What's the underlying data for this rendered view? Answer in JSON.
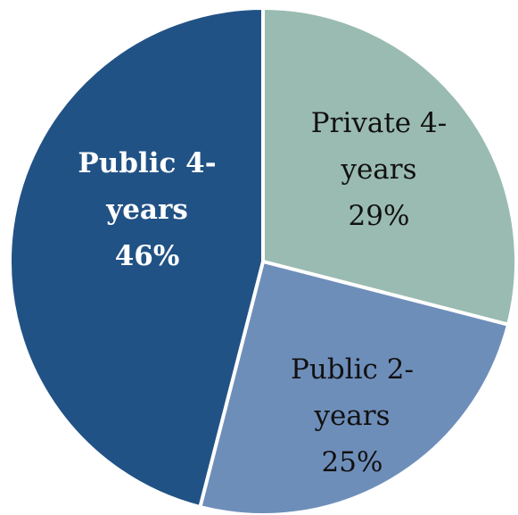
{
  "chart_data": {
    "type": "pie",
    "slices": [
      {
        "label_lines": [
          "Private 4-",
          "years"
        ],
        "percent_label": "29%",
        "value": 29,
        "color": "#9ABBB1",
        "label_color": "#111111",
        "label_bold": false
      },
      {
        "label_lines": [
          "Public 2-",
          "years"
        ],
        "percent_label": "25%",
        "value": 25,
        "color": "#6E8EBA",
        "label_color": "#111111",
        "label_bold": false
      },
      {
        "label_lines": [
          "Public 4-",
          "years"
        ],
        "percent_label": "46%",
        "value": 46,
        "color": "#215285",
        "label_color": "#ffffff",
        "label_bold": true
      }
    ],
    "start_angle_deg": 0,
    "direction": "clockwise"
  }
}
